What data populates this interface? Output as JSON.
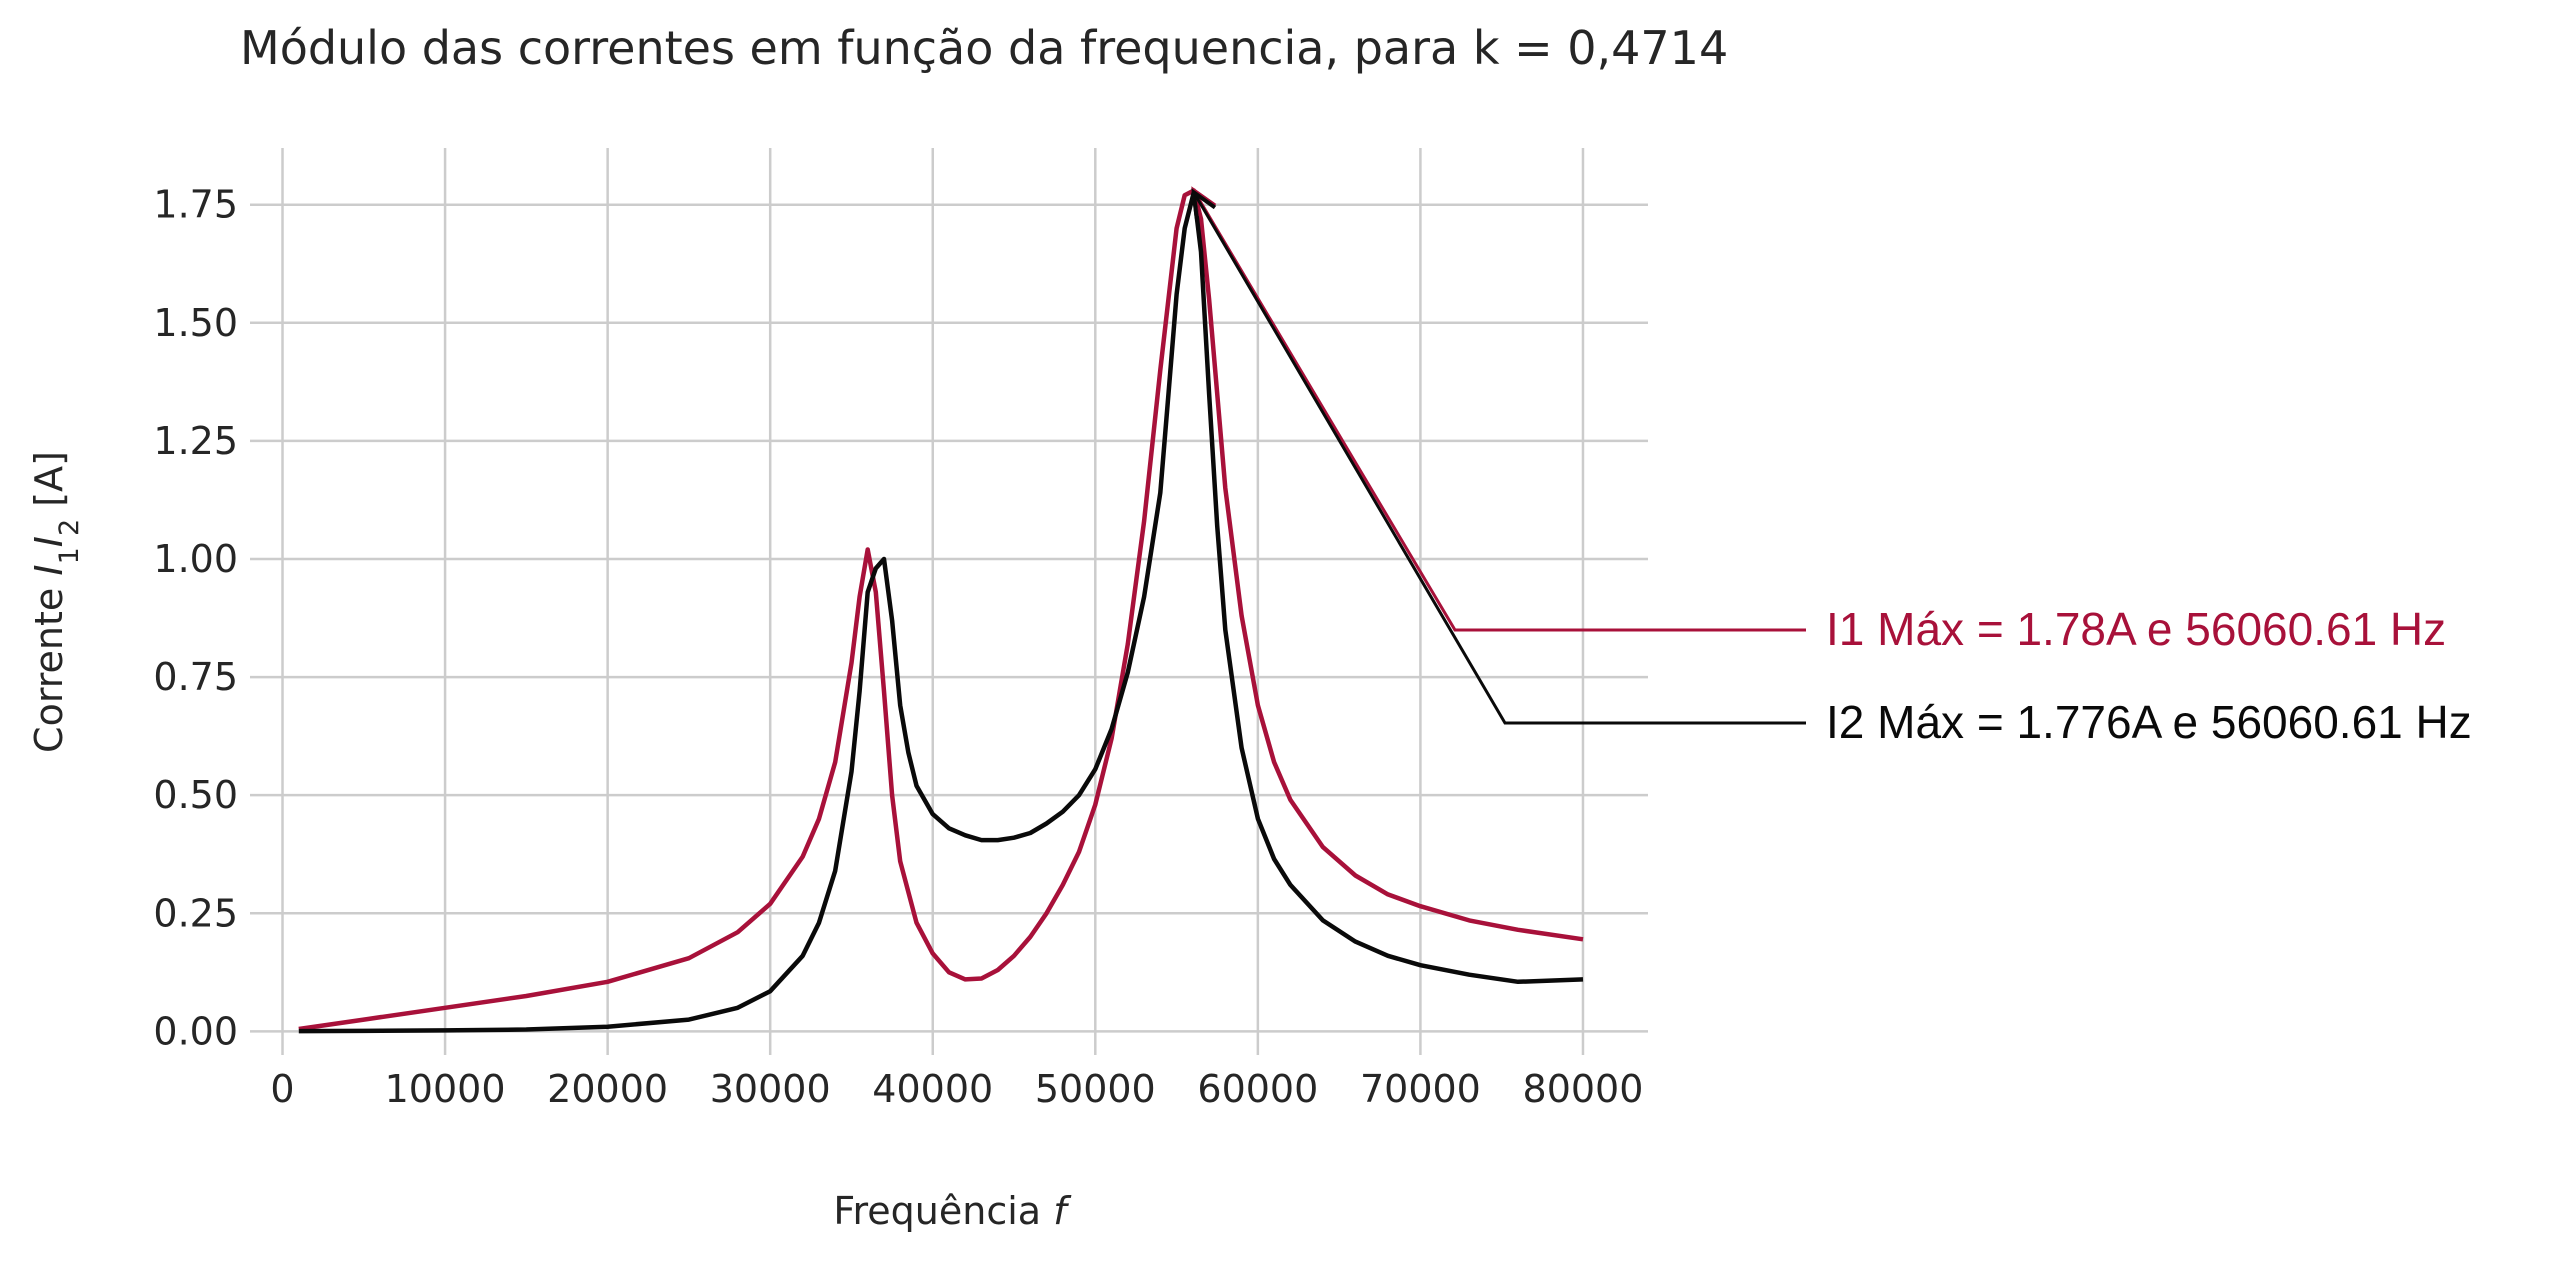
{
  "chart_data": {
    "type": "line",
    "title": "Módulo das correntes em função da frequencia, para k = 0,4714",
    "xlabel": "Frequência",
    "xlabel_var": "f",
    "ylabel": "Corrente",
    "ylabel_var1": "I",
    "ylabel_sub1": "1",
    "ylabel_var2": "I",
    "ylabel_sub2": "2",
    "ylabel_unit": "[A]",
    "xlim": [
      -2000,
      84000
    ],
    "ylim": [
      -0.05,
      1.87
    ],
    "xticks": [
      0,
      10000,
      20000,
      30000,
      40000,
      50000,
      60000,
      70000,
      80000
    ],
    "xtick_labels": [
      "0",
      "10000",
      "20000",
      "30000",
      "40000",
      "50000",
      "60000",
      "70000",
      "80000"
    ],
    "yticks": [
      0.0,
      0.25,
      0.5,
      0.75,
      1.0,
      1.25,
      1.5,
      1.75
    ],
    "ytick_labels": [
      "0.00",
      "0.25",
      "0.50",
      "0.75",
      "1.00",
      "1.25",
      "1.50",
      "1.75"
    ],
    "grid": true,
    "series": [
      {
        "key": "I1",
        "color": "#a8113a",
        "x": [
          1000,
          5000,
          10000,
          15000,
          20000,
          25000,
          28000,
          30000,
          32000,
          33000,
          34000,
          35000,
          35500,
          36000,
          36500,
          37000,
          37500,
          38000,
          39000,
          40000,
          41000,
          42000,
          43000,
          44000,
          45000,
          46000,
          47000,
          48000,
          49000,
          50000,
          51000,
          52000,
          53000,
          54000,
          55000,
          55500,
          56060,
          56500,
          57000,
          58000,
          59000,
          60000,
          61000,
          62000,
          64000,
          66000,
          68000,
          70000,
          73000,
          76000,
          80000
        ],
        "y": [
          0.005,
          0.025,
          0.05,
          0.075,
          0.105,
          0.155,
          0.21,
          0.27,
          0.37,
          0.45,
          0.57,
          0.78,
          0.92,
          1.02,
          0.93,
          0.72,
          0.5,
          0.36,
          0.23,
          0.165,
          0.125,
          0.11,
          0.112,
          0.13,
          0.16,
          0.2,
          0.25,
          0.31,
          0.38,
          0.48,
          0.62,
          0.82,
          1.08,
          1.4,
          1.7,
          1.77,
          1.78,
          1.72,
          1.55,
          1.15,
          0.88,
          0.69,
          0.57,
          0.49,
          0.39,
          0.33,
          0.29,
          0.265,
          0.235,
          0.215,
          0.195
        ]
      },
      {
        "key": "I2",
        "color": "#0a0a0a",
        "x": [
          1000,
          5000,
          10000,
          15000,
          20000,
          25000,
          28000,
          30000,
          32000,
          33000,
          34000,
          35000,
          35500,
          36000,
          36500,
          37000,
          37500,
          38000,
          38500,
          39000,
          40000,
          41000,
          42000,
          43000,
          44000,
          45000,
          46000,
          47000,
          48000,
          49000,
          50000,
          51000,
          52000,
          53000,
          54000,
          54500,
          55000,
          55500,
          56060,
          56500,
          57000,
          57500,
          58000,
          59000,
          60000,
          61000,
          62000,
          64000,
          66000,
          68000,
          70000,
          73000,
          76000,
          80000
        ],
        "y": [
          0.0005,
          0.001,
          0.002,
          0.004,
          0.01,
          0.025,
          0.05,
          0.085,
          0.16,
          0.23,
          0.34,
          0.55,
          0.72,
          0.93,
          0.98,
          1.0,
          0.87,
          0.69,
          0.59,
          0.52,
          0.46,
          0.43,
          0.415,
          0.405,
          0.405,
          0.41,
          0.42,
          0.44,
          0.465,
          0.5,
          0.555,
          0.64,
          0.76,
          0.92,
          1.14,
          1.35,
          1.56,
          1.7,
          1.776,
          1.65,
          1.35,
          1.07,
          0.85,
          0.6,
          0.45,
          0.365,
          0.31,
          0.235,
          0.19,
          0.16,
          0.14,
          0.12,
          0.105,
          0.11
        ]
      }
    ],
    "annotations": [
      {
        "key": "I1",
        "text": "I1 Máx = 1.78A e 56060.61 Hz",
        "color": "#a8113a",
        "point": [
          56060.61,
          1.78
        ]
      },
      {
        "key": "I2",
        "text": "I2 Máx = 1.776A e 56060.61 Hz",
        "color": "#0a0a0a",
        "point": [
          56060.61,
          1.776
        ]
      }
    ]
  }
}
